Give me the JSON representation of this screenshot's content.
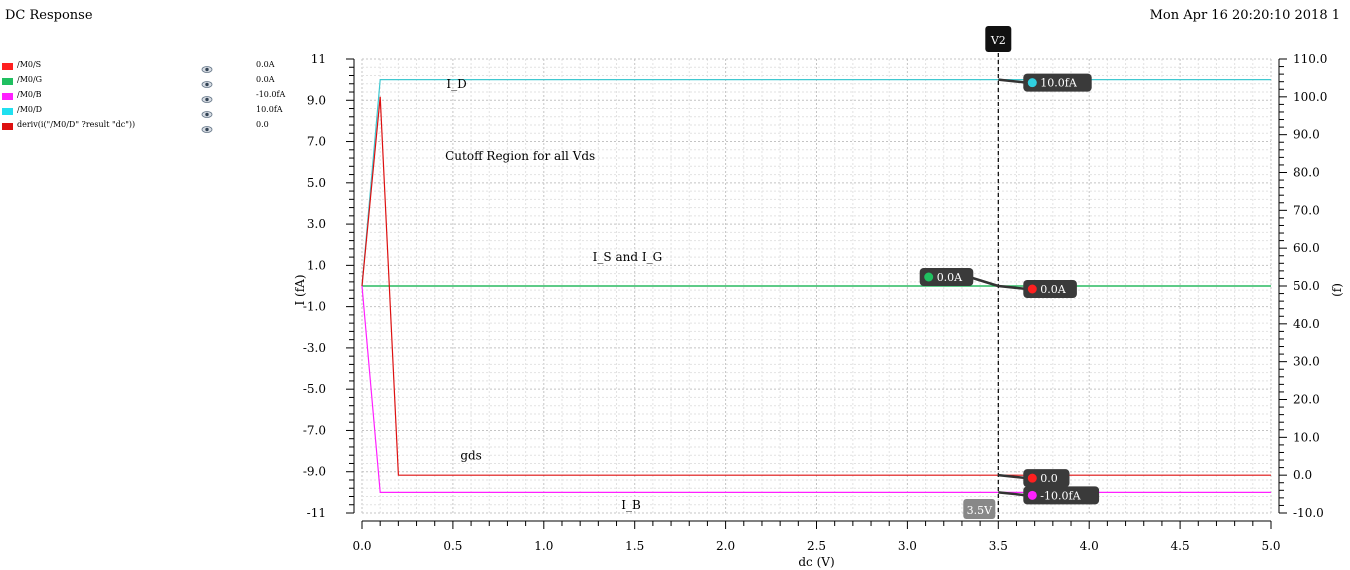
{
  "window": {
    "title": "DC Response",
    "datetime": "Mon Apr 16 20:20:10 2018  1"
  },
  "legend": [
    {
      "name": "/M0/S",
      "color": "#ff2020",
      "value": "0.0A",
      "icon": "eye-icon"
    },
    {
      "name": "/M0/G",
      "color": "#1fbf60",
      "value": "0.0A",
      "icon": "eye-icon"
    },
    {
      "name": "/M0/B",
      "color": "#ff20ff",
      "value": "-10.0fA",
      "icon": "eye-icon"
    },
    {
      "name": "/M0/D",
      "color": "#20e0f0",
      "value": "10.0fA",
      "icon": "eye-icon"
    },
    {
      "name": "deriv(i(\"/M0/D\" ?result \"dc\"))",
      "color": "#dd1010",
      "value": "0.0",
      "icon": "eye-icon"
    }
  ],
  "chart_data": {
    "type": "line",
    "xlabel": "dc (V)",
    "ylabel": "I (fA)",
    "y2label": "(f)",
    "xlim": [
      0,
      5
    ],
    "ylim": [
      -11,
      11
    ],
    "y2lim": [
      -10,
      110
    ],
    "grid": true,
    "xticks": [
      "0.0",
      "0.5",
      "1.0",
      "1.5",
      "2.0",
      "2.5",
      "3.0",
      "3.5",
      "4.0",
      "4.5",
      "5.0"
    ],
    "yticks": [
      "11",
      "9.0",
      "7.0",
      "5.0",
      "3.0",
      "1.0",
      "-1.0",
      "-3.0",
      "-5.0",
      "-7.0",
      "-9.0",
      "-11"
    ],
    "y2ticks": [
      "110.0",
      "100.0",
      "90.0",
      "80.0",
      "70.0",
      "60.0",
      "50.0",
      "40.0",
      "30.0",
      "20.0",
      "10.0",
      "0.0",
      "-10.0"
    ],
    "series": [
      {
        "name": "/M0/S",
        "color": "#2f7f2f",
        "axis": "left",
        "points": [
          [
            0,
            0
          ],
          [
            5,
            0
          ]
        ]
      },
      {
        "name": "/M0/G",
        "color": "#1fbf60",
        "axis": "left",
        "points": [
          [
            0,
            0
          ],
          [
            5,
            0
          ]
        ]
      },
      {
        "name": "/M0/B",
        "color": "#ff20ff",
        "axis": "left",
        "points": [
          [
            0,
            0
          ],
          [
            0.1,
            -10
          ],
          [
            5,
            -10
          ]
        ]
      },
      {
        "name": "/M0/D",
        "color": "#40c8d0",
        "axis": "left",
        "points": [
          [
            0,
            0
          ],
          [
            0.1,
            10
          ],
          [
            5,
            10
          ]
        ]
      },
      {
        "name": "deriv(i(\"/M0/D\" ?result \"dc\"))",
        "color": "#dd1010",
        "axis": "right",
        "points": [
          [
            0,
            50
          ],
          [
            0.1,
            100
          ],
          [
            0.2,
            0
          ],
          [
            5,
            0
          ]
        ]
      }
    ],
    "annotations": [
      {
        "text": "I_D",
        "x": 0.52,
        "y": 9.6
      },
      {
        "text": "Cutoff Region for all Vds",
        "x": 0.87,
        "y": 6.1
      },
      {
        "text": "I_S and I_G",
        "x": 1.46,
        "y": 1.2
      },
      {
        "text": "gds",
        "x": 0.6,
        "y": -8.4
      },
      {
        "text": "I_B",
        "x": 1.48,
        "y": -10.8
      }
    ],
    "marker": {
      "name": "V2",
      "x": 3.5,
      "x_label": "3.5V",
      "labels": [
        {
          "text": "10.0fA",
          "dot": "#30d0e0",
          "side": "right",
          "axis": "left",
          "y": 10
        },
        {
          "text": "0.0A",
          "dot": "#20c060",
          "side": "left",
          "axis": "left",
          "y": 0
        },
        {
          "text": "0.0A",
          "dot": "#ff2020",
          "side": "right",
          "axis": "left",
          "y": 0
        },
        {
          "text": "0.0",
          "dot": "#ff2020",
          "side": "right",
          "axis": "right",
          "y": 0
        },
        {
          "text": "-10.0fA",
          "dot": "#ff20ff",
          "side": "right",
          "axis": "left",
          "y": -10
        }
      ]
    }
  }
}
